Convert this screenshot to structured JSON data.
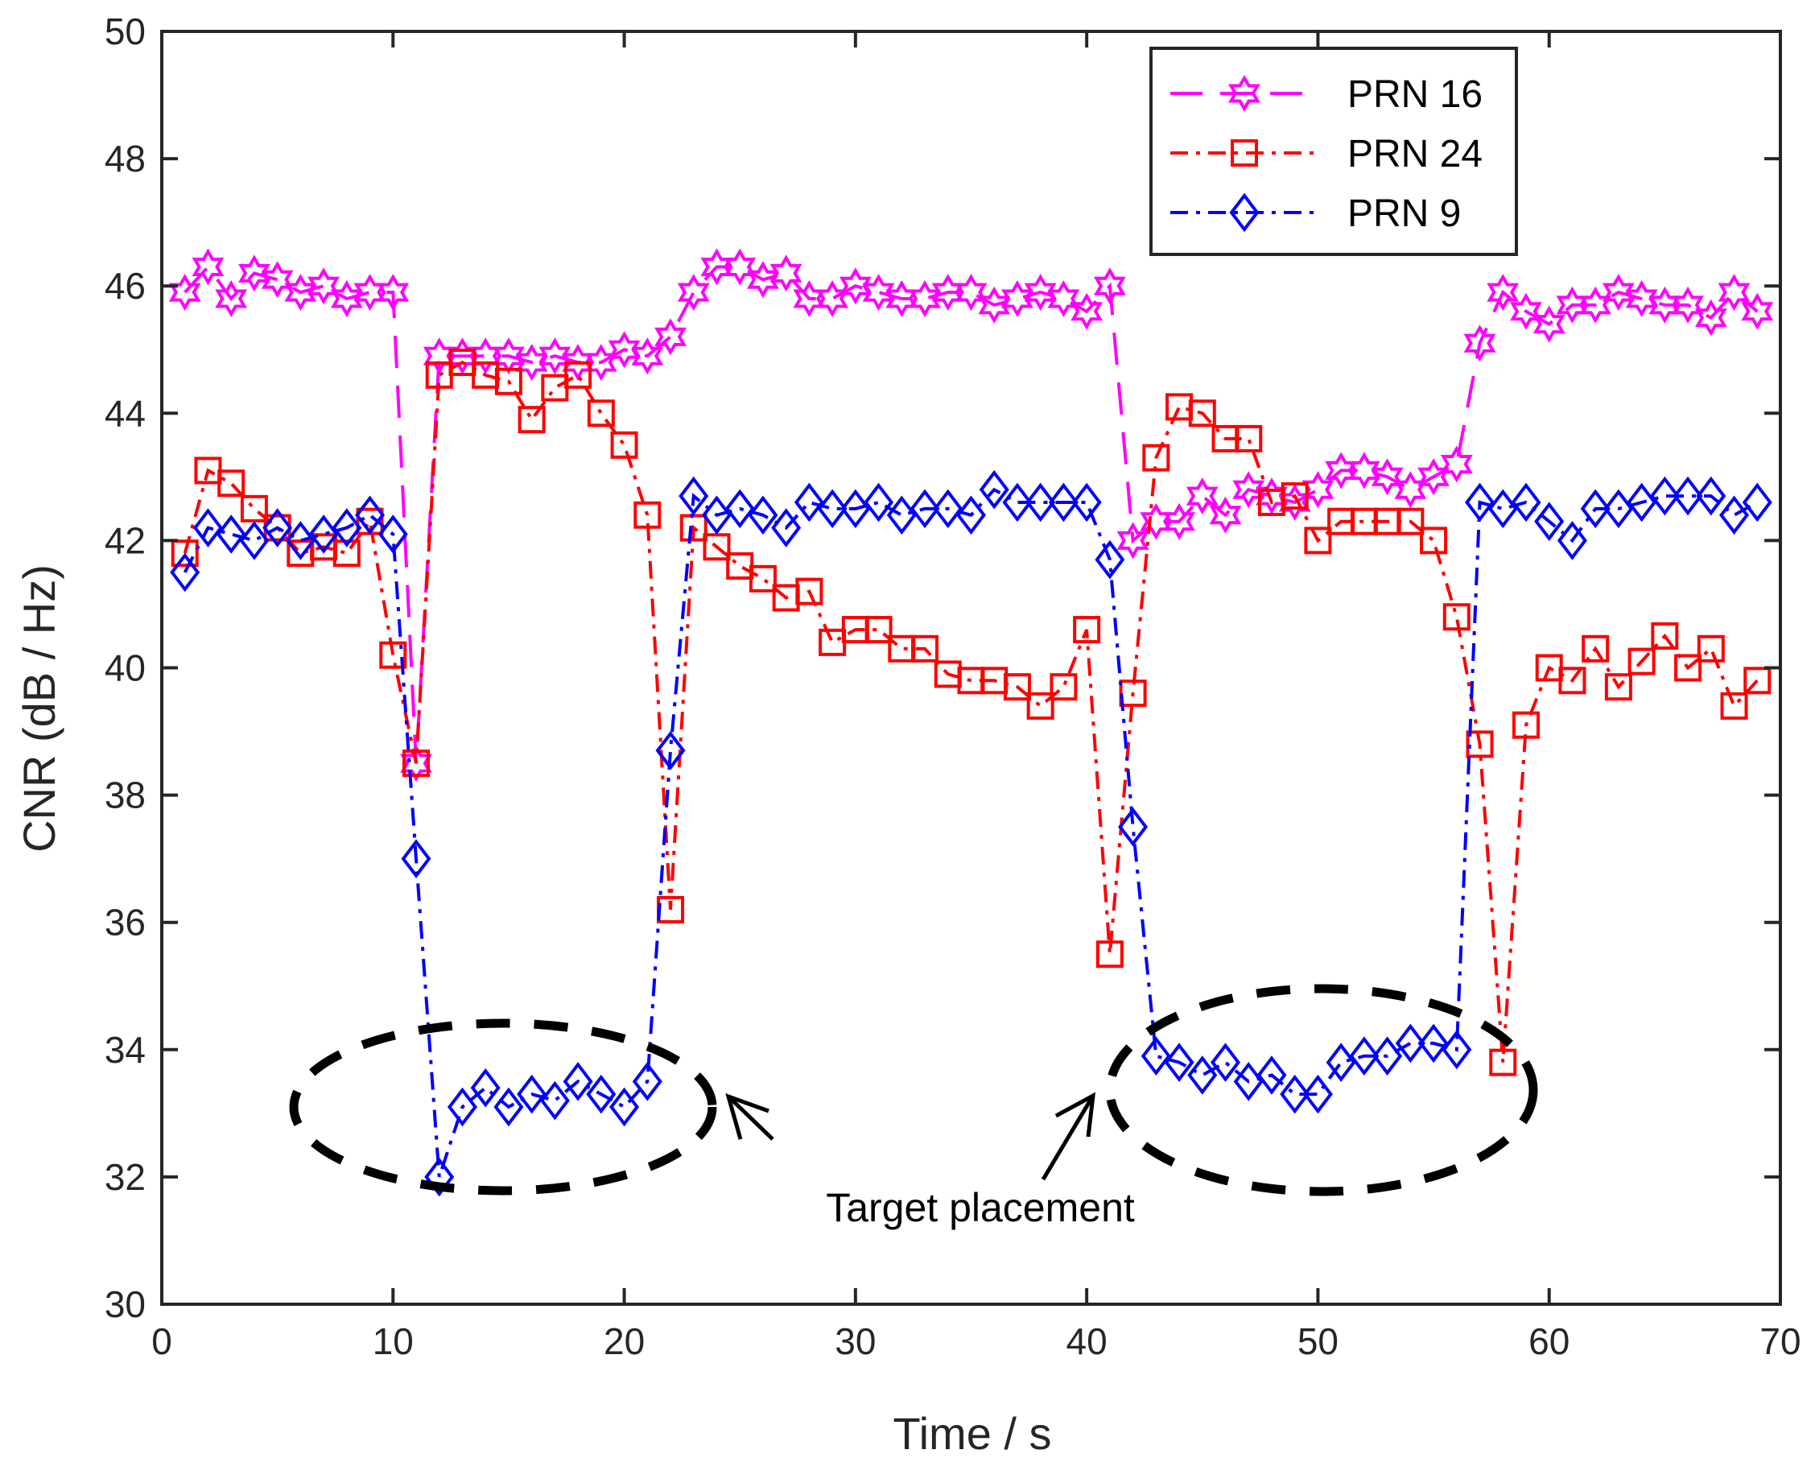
{
  "chart_data": {
    "type": "line",
    "xlabel": "Time / s",
    "ylabel": "CNR (dB / Hz)",
    "xlim": [
      0,
      70
    ],
    "ylim": [
      30,
      50
    ],
    "xticks": [
      0,
      10,
      20,
      30,
      40,
      50,
      60,
      70
    ],
    "yticks": [
      30,
      32,
      34,
      36,
      38,
      40,
      42,
      44,
      46,
      48,
      50
    ],
    "grid": false,
    "legend_position": "top-right",
    "x": [
      1,
      2,
      3,
      4,
      5,
      6,
      7,
      8,
      9,
      10,
      11,
      12,
      13,
      14,
      15,
      16,
      17,
      18,
      19,
      20,
      21,
      22,
      23,
      24,
      25,
      26,
      27,
      28,
      29,
      30,
      31,
      32,
      33,
      34,
      35,
      36,
      37,
      38,
      39,
      40,
      41,
      42,
      43,
      44,
      45,
      46,
      47,
      48,
      49,
      50,
      51,
      52,
      53,
      54,
      55,
      56,
      57,
      58,
      59,
      60,
      61,
      62,
      63,
      64,
      65,
      66,
      67,
      68,
      69
    ],
    "series": [
      {
        "name": "PRN 16",
        "color": "#ff00ff",
        "marker": "hexagram",
        "line_style": "dashed",
        "values": [
          45.9,
          46.3,
          45.8,
          46.2,
          46.1,
          45.9,
          46.0,
          45.8,
          45.9,
          45.9,
          38.5,
          44.9,
          44.9,
          44.9,
          44.9,
          44.8,
          44.9,
          44.8,
          44.8,
          45.0,
          44.9,
          45.2,
          45.9,
          46.3,
          46.3,
          46.1,
          46.2,
          45.8,
          45.8,
          46.0,
          45.9,
          45.8,
          45.8,
          45.9,
          45.9,
          45.7,
          45.8,
          45.9,
          45.8,
          45.6,
          46.0,
          42.0,
          42.3,
          42.3,
          42.7,
          42.4,
          42.8,
          42.7,
          42.6,
          42.8,
          43.1,
          43.1,
          43.0,
          42.8,
          43.0,
          43.2,
          45.1,
          45.9,
          45.6,
          45.4,
          45.7,
          45.7,
          45.9,
          45.8,
          45.7,
          45.7,
          45.5,
          45.9,
          45.6
        ]
      },
      {
        "name": "PRN 24",
        "color": "#ff0000",
        "marker": "square",
        "line_style": "dash-dot",
        "values": [
          41.8,
          43.1,
          42.9,
          42.5,
          42.2,
          41.8,
          41.9,
          41.8,
          42.3,
          40.2,
          38.5,
          44.6,
          44.8,
          44.6,
          44.5,
          43.9,
          44.4,
          44.6,
          44.0,
          43.5,
          42.4,
          36.2,
          42.2,
          41.9,
          41.6,
          41.4,
          41.1,
          41.2,
          40.4,
          40.6,
          40.6,
          40.3,
          40.3,
          39.9,
          39.8,
          39.8,
          39.7,
          39.4,
          39.7,
          40.6,
          35.5,
          39.6,
          43.3,
          44.1,
          44.0,
          43.6,
          43.6,
          42.6,
          42.7,
          42.0,
          42.3,
          42.3,
          42.3,
          42.3,
          42.0,
          40.8,
          38.8,
          33.8,
          39.1,
          40.0,
          39.8,
          40.3,
          39.7,
          40.1,
          40.5,
          40.0,
          40.3,
          39.4,
          39.8
        ]
      },
      {
        "name": "PRN 9",
        "color": "#0000ff",
        "marker": "diamond",
        "line_style": "dash-dot",
        "values": [
          41.5,
          42.2,
          42.1,
          42.0,
          42.2,
          42.0,
          42.1,
          42.2,
          42.4,
          42.1,
          37.0,
          32.0,
          33.1,
          33.4,
          33.1,
          33.3,
          33.2,
          33.5,
          33.3,
          33.1,
          33.5,
          38.7,
          42.7,
          42.4,
          42.5,
          42.4,
          42.2,
          42.6,
          42.5,
          42.5,
          42.6,
          42.4,
          42.5,
          42.5,
          42.4,
          42.8,
          42.6,
          42.6,
          42.6,
          42.6,
          41.7,
          37.5,
          33.9,
          33.8,
          33.6,
          33.8,
          33.5,
          33.6,
          33.3,
          33.3,
          33.8,
          33.9,
          33.9,
          34.1,
          34.1,
          34.0,
          42.6,
          42.5,
          42.6,
          42.3,
          42.0,
          42.5,
          42.5,
          42.6,
          42.7,
          42.7,
          42.7,
          42.4,
          42.6
        ]
      }
    ],
    "annotations": [
      {
        "text": "Target placement"
      }
    ]
  }
}
